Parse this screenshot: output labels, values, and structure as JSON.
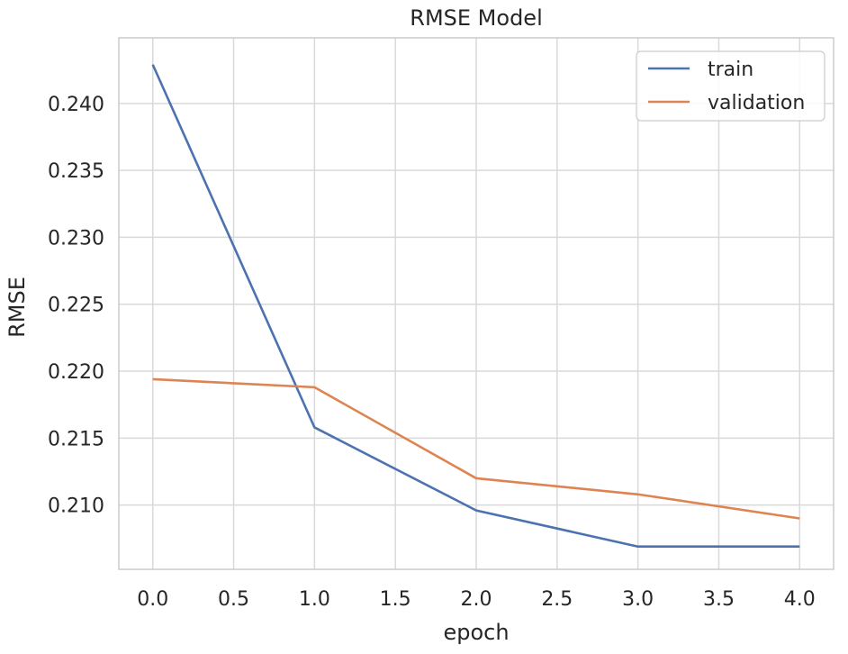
{
  "chart_data": {
    "type": "line",
    "title": "RMSE Model",
    "xlabel": "epoch",
    "ylabel": "RMSE",
    "x": [
      0,
      1,
      2,
      3,
      4
    ],
    "xlim": [
      -0.21,
      4.21
    ],
    "ylim": [
      0.2052,
      0.2449
    ],
    "xticks": [
      0.0,
      0.5,
      1.0,
      1.5,
      2.0,
      2.5,
      3.0,
      3.5,
      4.0
    ],
    "xtick_labels": [
      "0.0",
      "0.5",
      "1.0",
      "1.5",
      "2.0",
      "2.5",
      "3.0",
      "3.5",
      "4.0"
    ],
    "yticks": [
      0.21,
      0.215,
      0.22,
      0.225,
      0.23,
      0.235,
      0.24
    ],
    "ytick_labels": [
      "0.210",
      "0.215",
      "0.220",
      "0.225",
      "0.230",
      "0.235",
      "0.240"
    ],
    "grid": true,
    "legend_position": "top-right",
    "series": [
      {
        "name": "train",
        "color": "#4c72b0",
        "values": [
          0.2429,
          0.2158,
          0.2096,
          0.2069,
          0.2069
        ]
      },
      {
        "name": "validation",
        "color": "#dd8452",
        "values": [
          0.2194,
          0.2188,
          0.212,
          0.2108,
          0.209
        ]
      }
    ]
  }
}
